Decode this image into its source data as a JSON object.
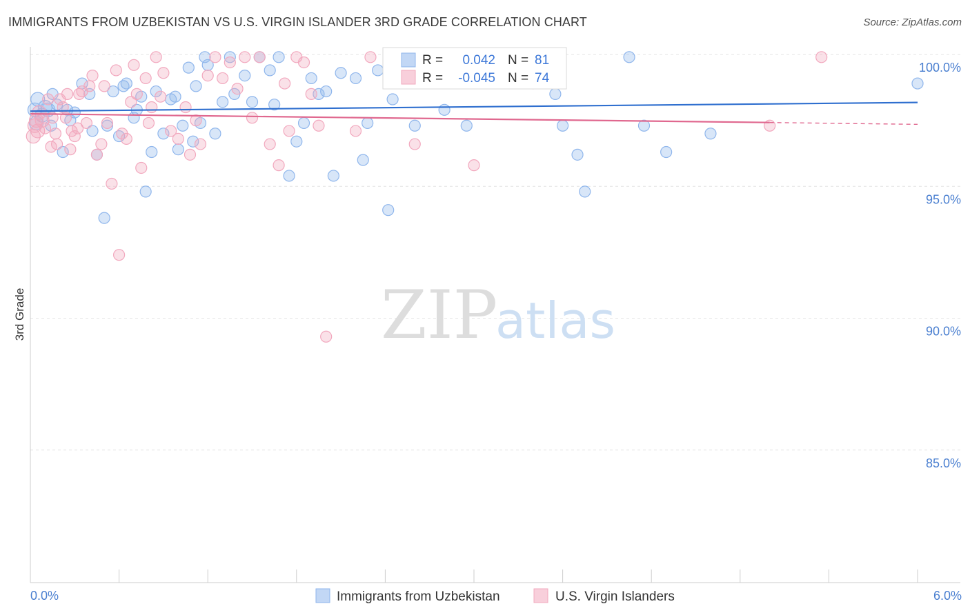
{
  "header": {
    "title": "IMMIGRANTS FROM UZBEKISTAN VS U.S. VIRGIN ISLANDER 3RD GRADE CORRELATION CHART",
    "source": "Source: ZipAtlas.com"
  },
  "watermark": {
    "zip": "ZIP",
    "atlas": "atlas"
  },
  "stats": {
    "rows": [
      {
        "r_label": "R =",
        "r_value": "0.042",
        "n_label": "N =",
        "n_value": "81",
        "color": "#8fb6ec"
      },
      {
        "r_label": "R =",
        "r_value": "-0.045",
        "n_label": "N =",
        "n_value": "74",
        "color": "#f2a8be"
      }
    ]
  },
  "chart_data": {
    "type": "scatter",
    "title": "IMMIGRANTS FROM UZBEKISTAN VS U.S. VIRGIN ISLANDER 3RD GRADE CORRELATION CHART",
    "xlabel": "",
    "ylabel": "3rd Grade",
    "xlim": [
      0,
      6
    ],
    "ylim": [
      80,
      100.8
    ],
    "x_tick_labels": [
      "0.0%",
      "6.0%"
    ],
    "y_ticks": [
      85,
      90,
      95,
      100
    ],
    "y_tick_labels": [
      "85.0%",
      "90.0%",
      "95.0%",
      "100.0%"
    ],
    "grid": true,
    "legend_position": "bottom-center",
    "series": [
      {
        "name": "Immigrants from Uzbekistan",
        "color": "#8fb6ec",
        "trend_color": "#2f6fcf",
        "trend": {
          "x0": 0.0,
          "y0": 97.85,
          "x1": 6.0,
          "y1": 98.18
        },
        "x": [
          0.03,
          0.04,
          0.05,
          0.08,
          0.1,
          0.12,
          0.14,
          0.15,
          0.18,
          0.22,
          0.25,
          0.27,
          0.3,
          0.35,
          0.4,
          0.42,
          0.45,
          0.5,
          0.52,
          0.56,
          0.6,
          0.63,
          0.65,
          0.7,
          0.72,
          0.75,
          0.78,
          0.82,
          0.85,
          0.9,
          0.95,
          0.98,
          1.0,
          1.03,
          1.07,
          1.1,
          1.12,
          1.15,
          1.18,
          1.2,
          1.25,
          1.3,
          1.35,
          1.38,
          1.45,
          1.5,
          1.55,
          1.62,
          1.65,
          1.68,
          1.75,
          1.8,
          1.85,
          1.9,
          1.95,
          2.0,
          2.05,
          2.1,
          2.2,
          2.25,
          2.28,
          2.35,
          2.42,
          2.45,
          2.5,
          2.55,
          2.6,
          2.8,
          2.95,
          3.1,
          3.3,
          3.5,
          3.55,
          3.6,
          3.7,
          3.75,
          4.05,
          4.15,
          4.3,
          4.6,
          6.0
        ],
        "y": [
          97.9,
          97.4,
          98.3,
          97.7,
          98.0,
          97.9,
          97.3,
          98.5,
          98.1,
          96.3,
          97.9,
          97.5,
          97.8,
          98.9,
          98.5,
          97.1,
          96.2,
          93.8,
          97.3,
          98.6,
          96.9,
          98.8,
          98.9,
          97.6,
          97.9,
          98.4,
          94.8,
          96.3,
          98.6,
          97.0,
          98.3,
          98.4,
          96.4,
          97.3,
          99.5,
          96.7,
          98.8,
          97.4,
          99.9,
          99.6,
          97.0,
          98.2,
          99.9,
          98.5,
          99.2,
          98.2,
          99.9,
          99.4,
          98.1,
          99.9,
          95.4,
          96.7,
          97.4,
          99.1,
          98.5,
          98.6,
          95.4,
          99.3,
          99.1,
          96.0,
          97.4,
          99.4,
          94.1,
          98.3,
          99.6,
          99.8,
          97.3,
          97.9,
          97.3,
          99.9,
          99.2,
          99.9,
          98.5,
          97.3,
          96.2,
          94.8,
          99.9,
          97.3,
          96.3,
          97.0,
          98.9
        ]
      },
      {
        "name": "U.S. Virgin Islanders",
        "color": "#f2a8be",
        "trend_color": "#e0688f",
        "trend": {
          "x0": 0.0,
          "y0": 97.75,
          "x1": 5.0,
          "y1": 97.42
        },
        "trend_extension": {
          "x0": 5.0,
          "y0": 97.42,
          "x1": 6.0,
          "y1": 97.35
        },
        "x": [
          0.02,
          0.03,
          0.04,
          0.05,
          0.06,
          0.08,
          0.1,
          0.12,
          0.14,
          0.15,
          0.17,
          0.18,
          0.2,
          0.22,
          0.24,
          0.25,
          0.27,
          0.28,
          0.3,
          0.32,
          0.33,
          0.35,
          0.38,
          0.4,
          0.42,
          0.45,
          0.48,
          0.5,
          0.52,
          0.55,
          0.58,
          0.6,
          0.62,
          0.65,
          0.68,
          0.7,
          0.72,
          0.75,
          0.78,
          0.8,
          0.82,
          0.85,
          0.88,
          0.9,
          0.95,
          1.0,
          1.05,
          1.08,
          1.12,
          1.15,
          1.2,
          1.25,
          1.3,
          1.35,
          1.4,
          1.45,
          1.5,
          1.55,
          1.62,
          1.68,
          1.72,
          1.75,
          1.8,
          1.85,
          1.9,
          1.95,
          2.0,
          2.2,
          2.3,
          2.6,
          3.0,
          3.4,
          5.0,
          5.35
        ],
        "y": [
          96.9,
          97.3,
          97.5,
          97.1,
          97.8,
          97.5,
          97.2,
          98.3,
          96.5,
          97.6,
          97.0,
          96.6,
          98.3,
          98.0,
          97.6,
          98.5,
          96.4,
          97.1,
          96.9,
          97.2,
          98.5,
          98.6,
          97.4,
          98.8,
          99.2,
          96.2,
          96.6,
          98.8,
          97.4,
          95.1,
          99.4,
          92.4,
          97.0,
          96.8,
          98.2,
          99.6,
          98.5,
          95.7,
          99.1,
          97.4,
          98.0,
          99.9,
          98.4,
          99.3,
          97.1,
          96.8,
          98.0,
          96.2,
          97.5,
          96.6,
          99.2,
          99.9,
          99.1,
          99.7,
          98.7,
          99.9,
          97.6,
          99.9,
          96.6,
          95.8,
          98.9,
          97.1,
          99.9,
          99.7,
          98.5,
          97.3,
          89.3,
          97.1,
          99.9,
          96.6,
          95.8,
          98.9,
          97.3,
          99.9
        ]
      }
    ]
  }
}
